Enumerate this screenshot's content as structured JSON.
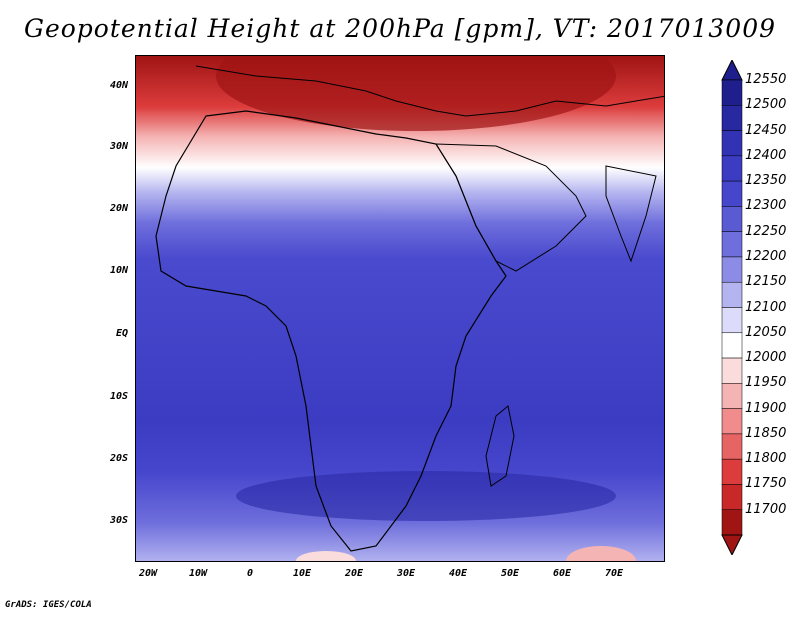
{
  "title": "Geopotential Height at 200hPa [gpm], VT: 2017013009",
  "footer": "GrADS: IGES/COLA",
  "axes": {
    "lat_labels": [
      "40N",
      "30N",
      "20N",
      "10N",
      "EQ",
      "10S",
      "20S",
      "30S"
    ],
    "lon_labels": [
      "20W",
      "10W",
      "0",
      "10E",
      "20E",
      "30E",
      "40E",
      "50E",
      "60E",
      "70E"
    ]
  },
  "colorbar": {
    "levels": [
      "12550",
      "12500",
      "12450",
      "12400",
      "12350",
      "12300",
      "12250",
      "12200",
      "12150",
      "12100",
      "12050",
      "12000",
      "11950",
      "11900",
      "11850",
      "11800",
      "11750",
      "11700"
    ],
    "colors": [
      "#1e1e8c",
      "#2828a0",
      "#3232b4",
      "#3c3cc3",
      "#4646cd",
      "#5a5ad2",
      "#6e6edc",
      "#8c8ce6",
      "#b4b4f0",
      "#dcdcfa",
      "#ffffff",
      "#fadcdc",
      "#f5b4b4",
      "#f08c8c",
      "#e66464",
      "#dc3c3c",
      "#c82828",
      "#a01414"
    ]
  },
  "map": {
    "region": "Africa",
    "field": "geopotential height 200hPa"
  }
}
